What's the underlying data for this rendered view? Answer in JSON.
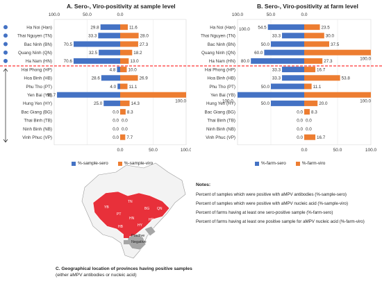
{
  "panel_a": {
    "title": "A. Sero-, Viro-positivity at sample level"
  },
  "panel_b": {
    "title": "B. Sero-, Viro-positivity at farm level"
  },
  "colors": {
    "sero": "#4472C4",
    "viro": "#ED7D31",
    "divider": "#FF0000",
    "positive": "#E8303A",
    "negative": "#A6A6A6",
    "map_base": "#F3F3F3"
  },
  "chart_data": [
    {
      "type": "bar",
      "title": "A. Sero-, Viro-positivity at sample level",
      "orientation": "horizontal-diverging",
      "categories": [
        "Ha Noi (Han)",
        "Thai Nguyen (TN)",
        "Bac Ninh (BN)",
        "Quang Ninh (QN)",
        "Ha Nam (HN)",
        "Hai Phong (HP)",
        "Hoa Binh (HB)",
        "Phu Tho (PT)",
        "Yen Bai (YB)",
        "Hung Yen (HY)",
        "Bac Giang (BG)",
        "Thai Binh (TB)",
        "Ninh Binh (NB)",
        "Vinh Phuc (VP)"
      ],
      "series": [
        {
          "name": "%-sample-sero",
          "values": [
            29.8,
            33.3,
            70.5,
            32.5,
            70.6,
            4.8,
            28.6,
            4.0,
            95.7,
            25.0,
            0.0,
            0.0,
            0.0,
            0.0
          ]
        },
        {
          "name": "%-sample-viro",
          "values": [
            11.6,
            28.0,
            27.3,
            18.2,
            13.0,
            10.0,
            26.9,
            11.1,
            100.0,
            14.3,
            8.3,
            0.0,
            0.0,
            7.7
          ]
        }
      ],
      "sero_labels": [
        "29.8",
        "33.3",
        "70.5",
        "32.5",
        "70.6",
        "4.8",
        "28.6",
        "4.0",
        "95.7",
        "25.0",
        "0.0",
        "0.0",
        "0.0",
        "0.0"
      ],
      "viro_labels": [
        "11.6",
        "28.0",
        "27.3",
        "18.2",
        "13.0",
        "10.0",
        "26.9",
        "11.1",
        "100.0",
        "14.3",
        "8.3",
        "0.0",
        "0.0",
        "7.7"
      ],
      "top_ticks": [
        "100.0",
        "50.0",
        "0.0"
      ],
      "bottom_ticks": [
        "0.0",
        "50.0",
        "100.0"
      ],
      "xlim": [
        -100,
        100
      ],
      "legend": [
        "%-sample-sero",
        "%-sample-viro"
      ]
    },
    {
      "type": "bar",
      "title": "B. Sero-, Viro-positivity at farm level",
      "orientation": "horizontal-diverging",
      "categories": [
        "Ha Noi (Han)",
        "Thai Nguyen (TN)",
        "Bac Ninh (BN)",
        "Quang Ninh (QN)",
        "Ha Nam (HN)",
        "Hai Phong (HP)",
        "Hoa Binh (HB)",
        "Phu Tho (PT)",
        "Yen Bai (YB)",
        "Hung Yen (HY)",
        "Bac Giang (BG)",
        "Thai Binh (TB)",
        "Ninh Binh (NB)",
        "Vinh Phuc (VP)"
      ],
      "series": [
        {
          "name": "%-farm-sero",
          "values": [
            54.5,
            33.3,
            50.0,
            60.0,
            80.0,
            33.3,
            33.3,
            50.0,
            100.0,
            50.0,
            0.0,
            0.0,
            0.0,
            0.0
          ]
        },
        {
          "name": "%-farm-viro",
          "values": [
            23.5,
            30.0,
            37.5,
            100.0,
            27.3,
            16.7,
            53.8,
            11.1,
            100.0,
            20.0,
            8.3,
            0.0,
            0.0,
            16.7
          ]
        }
      ],
      "sero_labels": [
        "54.5",
        "33.3",
        "50.0",
        "60.0",
        "80.0",
        "33.3",
        "33.3",
        "50.0",
        "100.0",
        "50.0",
        "0.0",
        "0.0",
        "0.0",
        "0.0"
      ],
      "viro_labels": [
        "23.5",
        "30.0",
        "37.5",
        "100.0",
        "27.3",
        "16.7",
        "53.8",
        "11.1",
        "100.0",
        "20.0",
        "8.3",
        "0.0",
        "0.0",
        "16.7"
      ],
      "extra_labels": [
        "100.0",
        "",
        "",
        "",
        "",
        "",
        "",
        "",
        "",
        "",
        "",
        "",
        "",
        ""
      ],
      "top_ticks": [
        "100.0",
        "50.0",
        "0.0"
      ],
      "bottom_ticks": [
        "0.0",
        "50.0",
        "100.0"
      ],
      "xlim": [
        -100,
        100
      ],
      "legend": [
        "%-farm-sero",
        "%-farm-viro"
      ]
    }
  ],
  "notes": {
    "title": "Notes:",
    "items": [
      "Percent of samples which were positive with aMPV antibodies (%-sample-sero)",
      "Percent of samples which were positive with aMPV nucleic acid (%-sample-viro)",
      "Percent of farms having at least one sero-positive sample (%-farm-sero)",
      "Percent of farms having at least one positive sample for aMPV nucleic acid (%-farm-viro)"
    ]
  },
  "map": {
    "legend": [
      "Positive",
      "Negative"
    ],
    "region_labels": [
      "YB",
      "TN",
      "BG",
      "PT",
      "QN",
      "HN",
      "HB",
      "HY",
      "HP"
    ]
  },
  "caption_c": {
    "line1": "C. Geographical location of provinces having positive samples",
    "line2": "(either aMPV antibodies or nucleic acid)"
  }
}
